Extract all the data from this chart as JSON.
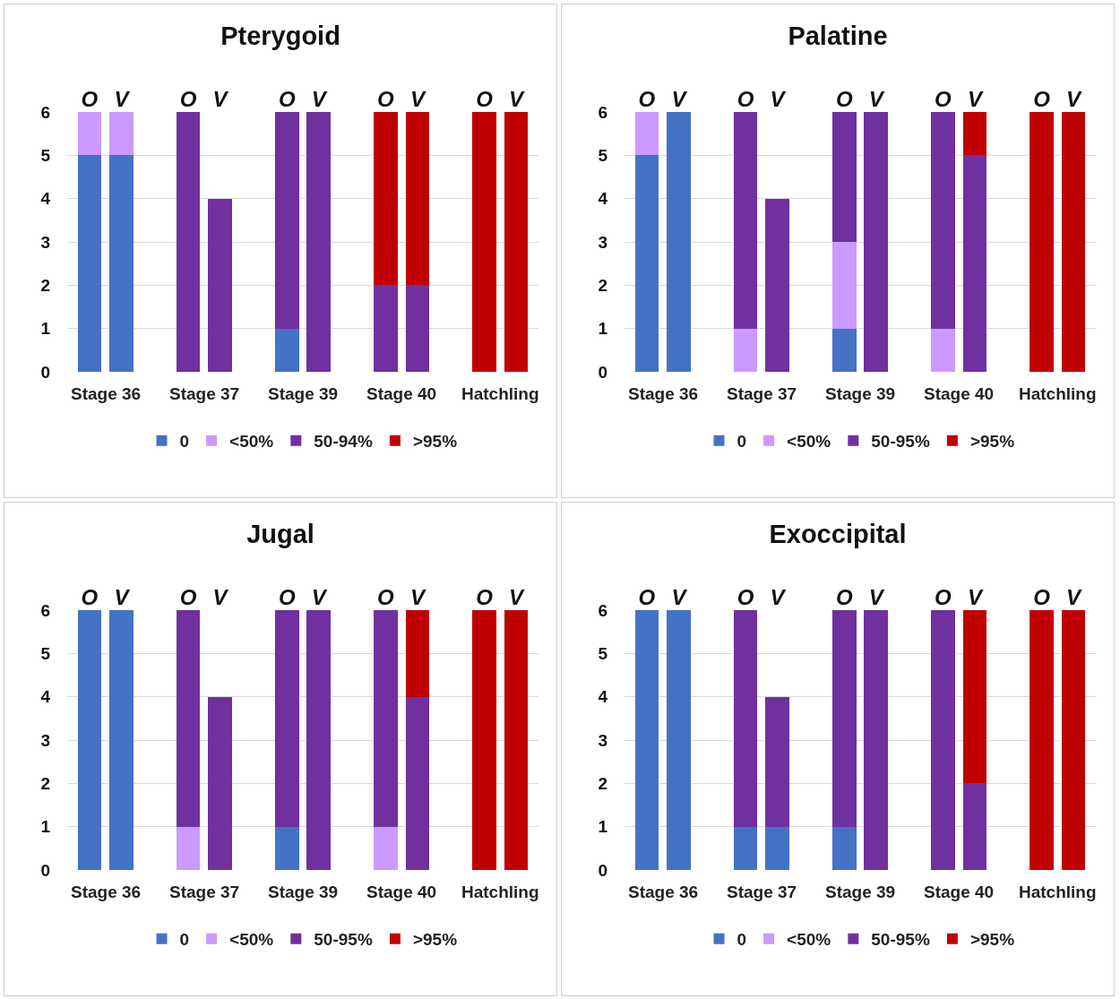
{
  "chart_data": [
    {
      "type": "bar",
      "title": "Pterygoid",
      "stacked": true,
      "categories": [
        "O",
        "V",
        "O",
        "V",
        "O",
        "V",
        "O",
        "V",
        "O",
        "V"
      ],
      "annotations": [
        "Stage 36",
        "Stage 37",
        "Stage 39",
        "Stage 40",
        "Hatchling"
      ],
      "ylim": [
        0,
        6
      ],
      "yticks": [
        0,
        1,
        2,
        3,
        4,
        5,
        6
      ],
      "grid": "y",
      "legend": "bottom",
      "series": [
        {
          "name": "0",
          "color": "#4472c4",
          "values": [
            5,
            5,
            0,
            0,
            1,
            0,
            0,
            0,
            0,
            0
          ]
        },
        {
          "name": "<50%",
          "color": "#cc99ff",
          "values": [
            1,
            1,
            0,
            0,
            0,
            0,
            0,
            0,
            0,
            0
          ]
        },
        {
          "name": "50-94%",
          "color": "#7030a0",
          "values": [
            0,
            0,
            6,
            4,
            5,
            6,
            2,
            2,
            0,
            0
          ]
        },
        {
          "name": ">95%",
          "color": "#c00000",
          "values": [
            0,
            0,
            0,
            0,
            0,
            0,
            4,
            4,
            6,
            6
          ]
        }
      ]
    },
    {
      "type": "bar",
      "title": "Palatine",
      "stacked": true,
      "categories": [
        "O",
        "V",
        "O",
        "V",
        "O",
        "V",
        "O",
        "V",
        "O",
        "V"
      ],
      "annotations": [
        "Stage 36",
        "Stage 37",
        "Stage 39",
        "Stage 40",
        "Hatchling"
      ],
      "ylim": [
        0,
        6
      ],
      "yticks": [
        0,
        1,
        2,
        3,
        4,
        5,
        6
      ],
      "grid": "y",
      "legend": "bottom",
      "series": [
        {
          "name": "0",
          "color": "#4472c4",
          "values": [
            5,
            6,
            0,
            0,
            1,
            0,
            0,
            0,
            0,
            0
          ]
        },
        {
          "name": "<50%",
          "color": "#cc99ff",
          "values": [
            1,
            0,
            1,
            0,
            2,
            0,
            1,
            0,
            0,
            0
          ]
        },
        {
          "name": "50-95%",
          "color": "#7030a0",
          "values": [
            0,
            0,
            5,
            4,
            3,
            6,
            5,
            5,
            0,
            0
          ]
        },
        {
          "name": ">95%",
          "color": "#c00000",
          "values": [
            0,
            0,
            0,
            0,
            0,
            0,
            0,
            1,
            6,
            6
          ]
        }
      ]
    },
    {
      "type": "bar",
      "title": "Jugal",
      "stacked": true,
      "categories": [
        "O",
        "V",
        "O",
        "V",
        "O",
        "V",
        "O",
        "V",
        "O",
        "V"
      ],
      "annotations": [
        "Stage 36",
        "Stage 37",
        "Stage 39",
        "Stage 40",
        "Hatchling"
      ],
      "ylim": [
        0,
        6
      ],
      "yticks": [
        0,
        1,
        2,
        3,
        4,
        5,
        6
      ],
      "grid": "y",
      "legend": "bottom",
      "series": [
        {
          "name": "0",
          "color": "#4472c4",
          "values": [
            6,
            6,
            0,
            0,
            1,
            0,
            0,
            0,
            0,
            0
          ]
        },
        {
          "name": "<50%",
          "color": "#cc99ff",
          "values": [
            0,
            0,
            1,
            0,
            0,
            0,
            1,
            0,
            0,
            0
          ]
        },
        {
          "name": "50-95%",
          "color": "#7030a0",
          "values": [
            0,
            0,
            5,
            4,
            5,
            6,
            5,
            4,
            0,
            0
          ]
        },
        {
          "name": ">95%",
          "color": "#c00000",
          "values": [
            0,
            0,
            0,
            0,
            0,
            0,
            0,
            2,
            6,
            6
          ]
        }
      ]
    },
    {
      "type": "bar",
      "title": "Exoccipital",
      "stacked": true,
      "categories": [
        "O",
        "V",
        "O",
        "V",
        "O",
        "V",
        "O",
        "V",
        "O",
        "V"
      ],
      "annotations": [
        "Stage 36",
        "Stage 37",
        "Stage 39",
        "Stage 40",
        "Hatchling"
      ],
      "ylim": [
        0,
        6
      ],
      "yticks": [
        0,
        1,
        2,
        3,
        4,
        5,
        6
      ],
      "grid": "y",
      "legend": "bottom",
      "series": [
        {
          "name": "0",
          "color": "#4472c4",
          "values": [
            6,
            6,
            1,
            1,
            1,
            0,
            0,
            0,
            0,
            0
          ]
        },
        {
          "name": "<50%",
          "color": "#cc99ff",
          "values": [
            0,
            0,
            0,
            0,
            0,
            0,
            0,
            0,
            0,
            0
          ]
        },
        {
          "name": "50-95%",
          "color": "#7030a0",
          "values": [
            0,
            0,
            5,
            3,
            5,
            6,
            6,
            2,
            0,
            0
          ]
        },
        {
          "name": ">95%",
          "color": "#c00000",
          "values": [
            0,
            0,
            0,
            0,
            0,
            0,
            0,
            4,
            6,
            6
          ]
        }
      ]
    }
  ]
}
